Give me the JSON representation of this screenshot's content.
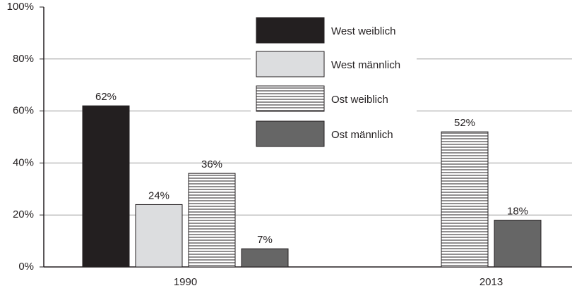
{
  "chart_data": {
    "type": "bar",
    "categories": [
      "1990",
      "2013"
    ],
    "series": [
      {
        "name": "West weiblich",
        "color": "#231f20",
        "values": [
          62,
          null
        ],
        "value_labels": [
          "62%",
          null
        ]
      },
      {
        "name": "West männlich",
        "color": "#dcdddf",
        "values": [
          24,
          null
        ],
        "value_labels": [
          "24%",
          null
        ]
      },
      {
        "name": "Ost weiblich",
        "color": "#ffffff",
        "hatch": true,
        "values": [
          36,
          52
        ],
        "value_labels": [
          "36%",
          "52%"
        ]
      },
      {
        "name": "Ost männlich",
        "color": "#666666",
        "values": [
          7,
          18
        ],
        "value_labels": [
          "7%",
          "18%"
        ]
      }
    ],
    "ylim": [
      0,
      100
    ],
    "yticks": [
      {
        "value": 0,
        "label": "0%"
      },
      {
        "value": 20,
        "label": "20%"
      },
      {
        "value": 40,
        "label": "40%"
      },
      {
        "value": 60,
        "label": "60%"
      },
      {
        "value": 80,
        "label": "80%"
      },
      {
        "value": 100,
        "label": "100%"
      }
    ],
    "grid": true
  }
}
